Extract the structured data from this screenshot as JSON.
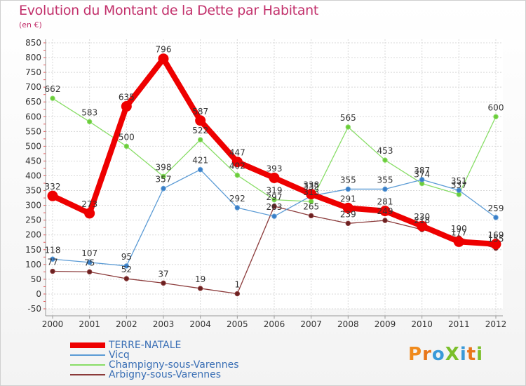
{
  "header": {
    "title": "Evolution du Montant de la Dette par Habitant",
    "subtitle": "(en €)"
  },
  "logo": {
    "text": "ProXiti",
    "letters": [
      "P",
      "r",
      "o",
      "X",
      "i",
      "t",
      "i"
    ],
    "colors": [
      "#f08a1c",
      "#e8761a",
      "#3a9ad9",
      "#7bbf2a",
      "#3a9ad9",
      "#e8761a",
      "#7bbf2a"
    ]
  },
  "chart_data": {
    "type": "line",
    "x": [
      "2000",
      "2001",
      "2002",
      "2003",
      "2004",
      "2005",
      "2006",
      "2007",
      "2008",
      "2009",
      "2010",
      "2011",
      "2012"
    ],
    "ylim": [
      -50,
      850
    ],
    "yticks": [
      -50,
      0,
      50,
      100,
      150,
      200,
      250,
      300,
      350,
      400,
      450,
      500,
      550,
      600,
      650,
      700,
      750,
      800,
      850
    ],
    "grid": true,
    "legend_position": "bottom-left",
    "series": [
      {
        "name": "TERRE-NATALE",
        "color": "#ee0000",
        "width": 8,
        "marker": 7,
        "values": [
          332,
          273,
          635,
          796,
          587,
          447,
          393,
          338,
          291,
          281,
          230,
          177,
          169
        ],
        "labels": [
          "332",
          "273",
          "635",
          "796",
          "587",
          "447",
          "393",
          "338",
          "291",
          "281",
          "230",
          "177",
          "169"
        ]
      },
      {
        "name": "Vicq",
        "color": "#5b9bd5",
        "width": 1.3,
        "marker": 3.2,
        "marker_fill": "#3a7ec8",
        "values": [
          118,
          107,
          95,
          357,
          421,
          292,
          263,
          332,
          355,
          355,
          387,
          351,
          259
        ],
        "labels": [
          "118",
          "107",
          "95",
          "357",
          "421",
          "292",
          "263",
          "332",
          "355",
          "355",
          "387",
          "351",
          "259"
        ]
      },
      {
        "name": "Champigny-sous-Varennes",
        "color": "#88dd66",
        "width": 1.3,
        "marker": 3.2,
        "marker_fill": "#6ccc3a",
        "values": [
          662,
          583,
          500,
          398,
          522,
          402,
          319,
          313,
          565,
          453,
          374,
          337,
          600
        ],
        "labels": [
          "662",
          "583",
          "500",
          "398",
          "522",
          "402",
          "319",
          "313",
          "565",
          "453",
          "374",
          "337",
          "600"
        ]
      },
      {
        "name": "Arbigny-sous-Varennes",
        "color": "#8b3a3a",
        "width": 1.3,
        "marker": 3.2,
        "marker_fill": "#6b2020",
        "values": [
          77,
          75,
          52,
          37,
          19,
          1,
          297,
          265,
          239,
          249,
          218,
          190,
          155
        ],
        "labels": [
          "77",
          "75",
          "52",
          "37",
          "19",
          "1",
          "297",
          "265",
          "239",
          "249",
          "218",
          "190",
          "155"
        ]
      }
    ]
  }
}
